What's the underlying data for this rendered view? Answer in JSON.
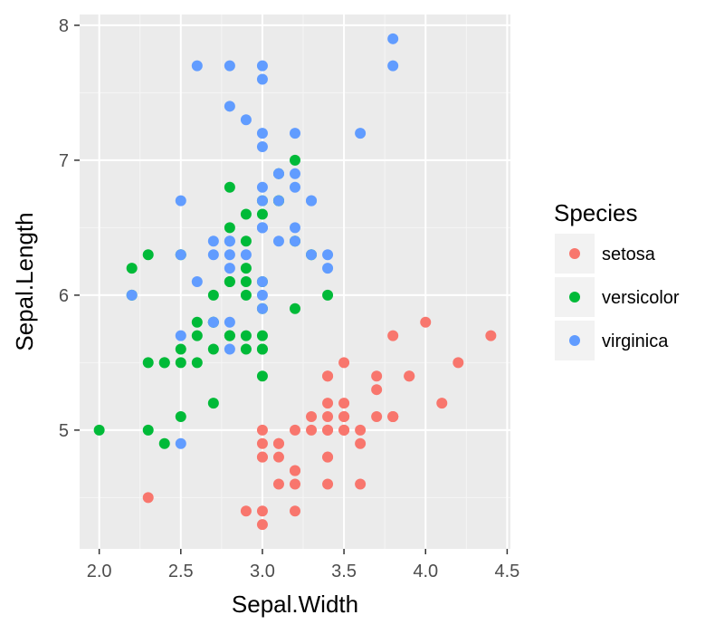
{
  "chart_data": {
    "type": "scatter",
    "title": "",
    "xlabel": "Sepal.Width",
    "ylabel": "Sepal.Length",
    "xlim": [
      1.88,
      4.52
    ],
    "ylim": [
      4.12,
      8.08
    ],
    "x_ticks": [
      "2.0",
      "2.5",
      "3.0",
      "3.5",
      "4.0",
      "4.5"
    ],
    "y_ticks": [
      "5",
      "6",
      "7",
      "8"
    ],
    "grid": true,
    "legend": {
      "title": "Species",
      "position": "right"
    },
    "series": [
      {
        "name": "setosa",
        "color": "#F8766D",
        "points": [
          [
            5.1,
            3.5
          ],
          [
            4.9,
            3.0
          ],
          [
            4.7,
            3.2
          ],
          [
            4.6,
            3.1
          ],
          [
            5.0,
            3.6
          ],
          [
            5.4,
            3.9
          ],
          [
            4.6,
            3.4
          ],
          [
            5.0,
            3.4
          ],
          [
            4.4,
            2.9
          ],
          [
            4.9,
            3.1
          ],
          [
            5.4,
            3.7
          ],
          [
            4.8,
            3.4
          ],
          [
            4.8,
            3.0
          ],
          [
            4.3,
            3.0
          ],
          [
            5.8,
            4.0
          ],
          [
            5.7,
            4.4
          ],
          [
            5.4,
            3.9
          ],
          [
            5.1,
            3.5
          ],
          [
            5.7,
            3.8
          ],
          [
            5.1,
            3.8
          ],
          [
            5.4,
            3.4
          ],
          [
            5.1,
            3.7
          ],
          [
            4.6,
            3.6
          ],
          [
            5.1,
            3.3
          ],
          [
            4.8,
            3.4
          ],
          [
            5.0,
            3.0
          ],
          [
            5.0,
            3.4
          ],
          [
            5.2,
            3.5
          ],
          [
            5.2,
            3.4
          ],
          [
            4.7,
            3.2
          ],
          [
            4.8,
            3.1
          ],
          [
            5.4,
            3.4
          ],
          [
            5.2,
            4.1
          ],
          [
            5.5,
            4.2
          ],
          [
            4.9,
            3.1
          ],
          [
            5.0,
            3.2
          ],
          [
            5.5,
            3.5
          ],
          [
            4.9,
            3.6
          ],
          [
            4.4,
            3.0
          ],
          [
            5.1,
            3.4
          ],
          [
            5.0,
            3.5
          ],
          [
            4.5,
            2.3
          ],
          [
            4.4,
            3.2
          ],
          [
            5.0,
            3.5
          ],
          [
            5.1,
            3.8
          ],
          [
            4.8,
            3.0
          ],
          [
            5.1,
            3.8
          ],
          [
            4.6,
            3.2
          ],
          [
            5.3,
            3.7
          ],
          [
            5.0,
            3.3
          ]
        ]
      },
      {
        "name": "versicolor",
        "color": "#00BA38",
        "points": [
          [
            7.0,
            3.2
          ],
          [
            6.4,
            3.2
          ],
          [
            6.9,
            3.1
          ],
          [
            5.5,
            2.3
          ],
          [
            6.5,
            2.8
          ],
          [
            5.7,
            2.8
          ],
          [
            6.3,
            3.3
          ],
          [
            4.9,
            2.4
          ],
          [
            6.6,
            2.9
          ],
          [
            5.2,
            2.7
          ],
          [
            5.0,
            2.0
          ],
          [
            5.9,
            3.0
          ],
          [
            6.0,
            2.2
          ],
          [
            6.1,
            2.9
          ],
          [
            5.6,
            2.9
          ],
          [
            6.7,
            3.1
          ],
          [
            5.6,
            3.0
          ],
          [
            5.8,
            2.7
          ],
          [
            6.2,
            2.2
          ],
          [
            5.6,
            2.5
          ],
          [
            5.9,
            3.2
          ],
          [
            6.1,
            2.8
          ],
          [
            6.3,
            2.5
          ],
          [
            6.1,
            2.8
          ],
          [
            6.4,
            2.9
          ],
          [
            6.6,
            3.0
          ],
          [
            6.8,
            2.8
          ],
          [
            6.7,
            3.0
          ],
          [
            6.0,
            2.9
          ],
          [
            5.7,
            2.6
          ],
          [
            5.5,
            2.4
          ],
          [
            5.5,
            2.4
          ],
          [
            5.8,
            2.7
          ],
          [
            6.0,
            2.7
          ],
          [
            5.4,
            3.0
          ],
          [
            6.0,
            3.4
          ],
          [
            6.7,
            3.1
          ],
          [
            6.3,
            2.3
          ],
          [
            5.6,
            3.0
          ],
          [
            5.5,
            2.5
          ],
          [
            5.5,
            2.6
          ],
          [
            6.1,
            3.0
          ],
          [
            5.8,
            2.6
          ],
          [
            5.0,
            2.3
          ],
          [
            5.6,
            2.7
          ],
          [
            5.7,
            3.0
          ],
          [
            5.7,
            2.9
          ],
          [
            6.2,
            2.9
          ],
          [
            5.1,
            2.5
          ],
          [
            5.7,
            2.8
          ]
        ]
      },
      {
        "name": "virginica",
        "color": "#619CFF",
        "points": [
          [
            6.3,
            3.3
          ],
          [
            5.8,
            2.7
          ],
          [
            7.1,
            3.0
          ],
          [
            6.3,
            2.9
          ],
          [
            6.5,
            3.0
          ],
          [
            7.6,
            3.0
          ],
          [
            4.9,
            2.5
          ],
          [
            7.3,
            2.9
          ],
          [
            6.7,
            2.5
          ],
          [
            7.2,
            3.6
          ],
          [
            6.5,
            3.2
          ],
          [
            6.4,
            2.7
          ],
          [
            6.8,
            3.0
          ],
          [
            5.7,
            2.5
          ],
          [
            5.8,
            2.8
          ],
          [
            6.4,
            3.2
          ],
          [
            6.5,
            3.0
          ],
          [
            7.7,
            3.8
          ],
          [
            7.7,
            2.6
          ],
          [
            6.0,
            2.2
          ],
          [
            6.9,
            3.2
          ],
          [
            5.6,
            2.8
          ],
          [
            7.7,
            2.8
          ],
          [
            6.3,
            2.7
          ],
          [
            6.7,
            3.3
          ],
          [
            7.2,
            3.2
          ],
          [
            6.2,
            2.8
          ],
          [
            6.1,
            3.0
          ],
          [
            6.4,
            2.8
          ],
          [
            7.2,
            3.0
          ],
          [
            7.4,
            2.8
          ],
          [
            7.9,
            3.8
          ],
          [
            6.4,
            2.8
          ],
          [
            6.3,
            2.8
          ],
          [
            6.1,
            2.6
          ],
          [
            7.7,
            3.0
          ],
          [
            6.3,
            3.4
          ],
          [
            6.4,
            3.1
          ],
          [
            6.0,
            3.0
          ],
          [
            6.9,
            3.1
          ],
          [
            6.7,
            3.1
          ],
          [
            6.9,
            3.1
          ],
          [
            5.8,
            2.7
          ],
          [
            6.8,
            3.2
          ],
          [
            6.7,
            3.3
          ],
          [
            6.7,
            3.0
          ],
          [
            6.3,
            2.5
          ],
          [
            6.5,
            3.0
          ],
          [
            6.2,
            3.4
          ],
          [
            5.9,
            3.0
          ]
        ]
      }
    ]
  }
}
